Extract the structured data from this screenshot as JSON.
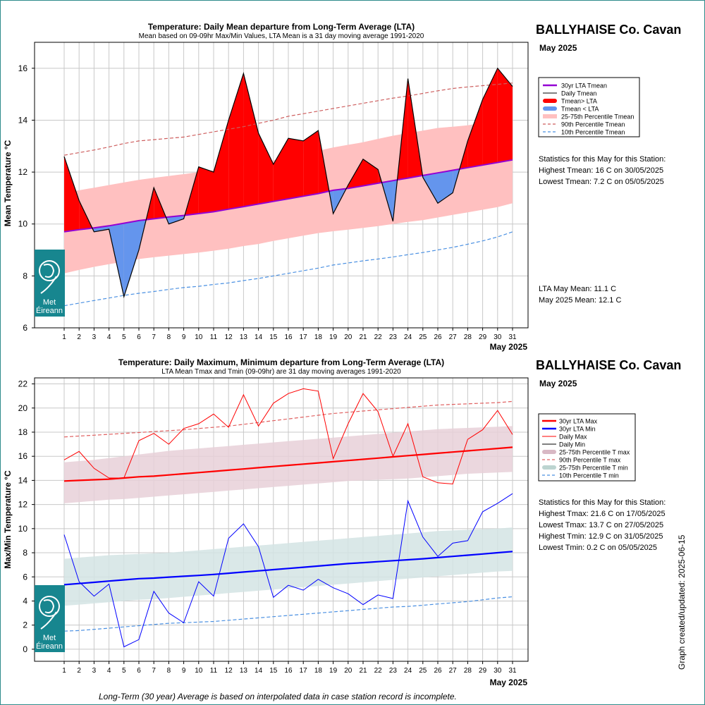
{
  "chart_data": [
    {
      "type": "area",
      "title": "Temperature: Daily Mean departure from Long-Term Average (LTA)",
      "subtitle": "Mean based on 09-09hr Max/Min Values, LTA Mean is a 31 day moving average 1991-2020",
      "ylabel": "Mean Temperature °C",
      "xlabel": "May 2025",
      "ylim": [
        6,
        17
      ],
      "yticks": [
        "6",
        "8",
        "10",
        "12",
        "14",
        "16"
      ],
      "x": [
        1,
        2,
        3,
        4,
        5,
        6,
        7,
        8,
        9,
        10,
        11,
        12,
        13,
        14,
        15,
        16,
        17,
        18,
        19,
        20,
        21,
        22,
        23,
        24,
        25,
        26,
        27,
        28,
        29,
        30,
        31
      ],
      "grid": true,
      "legend_position": "right",
      "legend": [
        "30yr LTA Tmean",
        "Daily Tmean",
        "Tmean> LTA",
        "Tmean < LTA",
        "25-75th Percentile Tmean",
        "90th Percentile Tmean",
        "10th Percentile Tmean"
      ],
      "series": [
        {
          "name": "Daily Tmean",
          "values": [
            12.6,
            10.9,
            9.7,
            9.8,
            7.2,
            9.0,
            11.4,
            10.0,
            10.2,
            12.2,
            12.0,
            14.0,
            15.8,
            13.5,
            12.3,
            13.3,
            13.2,
            13.6,
            10.4,
            11.5,
            12.5,
            12.1,
            10.1,
            15.6,
            11.8,
            10.8,
            11.2,
            13.2,
            14.8,
            16.0,
            15.3
          ]
        },
        {
          "name": "30yr LTA Tmean",
          "values": [
            9.7,
            9.78,
            9.85,
            9.93,
            10.03,
            10.13,
            10.2,
            10.27,
            10.33,
            10.4,
            10.47,
            10.57,
            10.67,
            10.77,
            10.87,
            10.97,
            11.07,
            11.17,
            11.3,
            11.37,
            11.47,
            11.57,
            11.67,
            11.77,
            11.87,
            11.97,
            12.07,
            12.17,
            12.27,
            12.37,
            12.47
          ]
        },
        {
          "name": "25th Percentile Tmean",
          "values": [
            8.1,
            8.23,
            8.35,
            8.45,
            8.55,
            8.65,
            8.72,
            8.78,
            8.84,
            8.9,
            8.97,
            9.05,
            9.15,
            9.23,
            9.35,
            9.45,
            9.55,
            9.65,
            9.72,
            9.78,
            9.85,
            9.92,
            10.0,
            10.08,
            10.15,
            10.25,
            10.35,
            10.45,
            10.55,
            10.65,
            10.8
          ]
        },
        {
          "name": "75th Percentile Tmean",
          "values": [
            11.2,
            11.3,
            11.4,
            11.5,
            11.6,
            11.7,
            11.78,
            11.85,
            11.92,
            12.0,
            12.07,
            12.15,
            12.25,
            12.35,
            12.45,
            12.57,
            12.7,
            12.82,
            12.95,
            13.05,
            13.15,
            13.28,
            13.4,
            13.5,
            13.6,
            13.7,
            13.75,
            13.8,
            13.9,
            14.0,
            14.05
          ]
        },
        {
          "name": "90th Percentile Tmean",
          "values": [
            12.65,
            12.75,
            12.85,
            12.97,
            13.1,
            13.2,
            13.25,
            13.3,
            13.35,
            13.45,
            13.55,
            13.65,
            13.75,
            13.88,
            14.0,
            14.15,
            14.25,
            14.35,
            14.45,
            14.55,
            14.65,
            14.75,
            14.85,
            14.93,
            15.03,
            15.13,
            15.22,
            15.28,
            15.33,
            15.38,
            15.43
          ]
        },
        {
          "name": "10th Percentile Tmean",
          "values": [
            6.85,
            6.95,
            7.05,
            7.15,
            7.25,
            7.33,
            7.4,
            7.48,
            7.55,
            7.6,
            7.67,
            7.73,
            7.82,
            7.9,
            8.0,
            8.1,
            8.2,
            8.3,
            8.42,
            8.5,
            8.58,
            8.65,
            8.73,
            8.82,
            8.9,
            9.0,
            9.1,
            9.22,
            9.35,
            9.5,
            9.7
          ]
        }
      ],
      "colors": {
        "above": "#ff0000",
        "below": "#6495ed",
        "lta": "#9400d3",
        "band": "#ffc0c0",
        "p90": "#cd5c5c",
        "p10": "#4a90e2"
      }
    },
    {
      "type": "line",
      "title": "Temperature: Daily Maximum, Minimum departure from Long-Term Average (LTA)",
      "subtitle": "LTA Mean Tmax and Tmin (09-09hr) are 31 day moving averages 1991-2020",
      "ylabel": "Max/Min Temperature °C",
      "xlabel": "May 2025",
      "ylim": [
        -1,
        22.5
      ],
      "yticks": [
        "0",
        "2",
        "4",
        "6",
        "8",
        "10",
        "12",
        "14",
        "16",
        "18",
        "20",
        "22"
      ],
      "x": [
        1,
        2,
        3,
        4,
        5,
        6,
        7,
        8,
        9,
        10,
        11,
        12,
        13,
        14,
        15,
        16,
        17,
        18,
        19,
        20,
        21,
        22,
        23,
        24,
        25,
        26,
        27,
        28,
        29,
        30,
        31
      ],
      "grid": true,
      "legend_position": "right",
      "legend": [
        "30yr LTA Max",
        "30yr LTA Min",
        "Daily Max",
        "Daily Min",
        "25-75th Percentile T max",
        "90th Percentile T max",
        "25-75th Percentile T min",
        "10th Percentile T min"
      ],
      "series": [
        {
          "name": "Daily Max",
          "values": [
            15.7,
            16.4,
            15.0,
            14.2,
            14.2,
            17.3,
            17.9,
            17.0,
            18.3,
            18.7,
            19.5,
            18.4,
            21.1,
            18.5,
            20.4,
            21.2,
            21.6,
            21.4,
            15.8,
            18.7,
            21.2,
            19.7,
            16.0,
            18.7,
            14.3,
            13.8,
            13.7,
            17.4,
            18.2,
            19.8,
            17.8
          ]
        },
        {
          "name": "Daily Min",
          "values": [
            9.5,
            5.6,
            4.4,
            5.4,
            0.2,
            0.8,
            4.8,
            3.0,
            2.2,
            5.6,
            4.4,
            9.2,
            10.4,
            8.5,
            4.3,
            5.3,
            4.9,
            5.8,
            5.1,
            4.6,
            3.7,
            4.5,
            4.2,
            12.3,
            9.3,
            7.7,
            8.8,
            9.0,
            11.4,
            12.1,
            12.9
          ]
        },
        {
          "name": "30yr LTA Max",
          "values": [
            13.95,
            14.0,
            14.05,
            14.1,
            14.2,
            14.3,
            14.35,
            14.45,
            14.55,
            14.65,
            14.75,
            14.85,
            14.95,
            15.05,
            15.15,
            15.25,
            15.35,
            15.45,
            15.55,
            15.65,
            15.75,
            15.85,
            15.95,
            16.05,
            16.15,
            16.25,
            16.35,
            16.45,
            16.55,
            16.65,
            16.75
          ]
        },
        {
          "name": "30yr LTA Min",
          "values": [
            5.35,
            5.45,
            5.55,
            5.65,
            5.75,
            5.85,
            5.9,
            5.98,
            6.05,
            6.12,
            6.2,
            6.3,
            6.4,
            6.5,
            6.6,
            6.7,
            6.8,
            6.9,
            7.0,
            7.1,
            7.18,
            7.26,
            7.34,
            7.42,
            7.5,
            7.6,
            7.7,
            7.8,
            7.9,
            8.0,
            8.1
          ]
        },
        {
          "name": "25th Percentile T max",
          "values": [
            12.1,
            12.2,
            12.3,
            12.4,
            12.45,
            12.55,
            12.65,
            12.75,
            12.85,
            12.95,
            13.05,
            13.15,
            13.25,
            13.35,
            13.45,
            13.55,
            13.65,
            13.75,
            13.85,
            13.95,
            14.0,
            14.05,
            14.1,
            14.15,
            14.25,
            14.35,
            14.45,
            14.55,
            14.6,
            14.65,
            14.7
          ]
        },
        {
          "name": "75th Percentile T max",
          "values": [
            15.5,
            15.6,
            15.7,
            15.85,
            16.0,
            16.15,
            16.3,
            16.45,
            16.55,
            16.65,
            16.75,
            16.85,
            16.95,
            17.05,
            17.15,
            17.25,
            17.35,
            17.45,
            17.55,
            17.65,
            17.75,
            17.85,
            17.95,
            18.05,
            18.15,
            18.25,
            18.3,
            18.35,
            18.4,
            18.45,
            18.5
          ]
        },
        {
          "name": "90th Percentile T max",
          "values": [
            17.6,
            17.68,
            17.75,
            17.82,
            17.9,
            17.97,
            18.05,
            18.12,
            18.2,
            18.3,
            18.4,
            18.5,
            18.65,
            18.8,
            18.95,
            19.1,
            19.25,
            19.4,
            19.55,
            19.65,
            19.75,
            19.85,
            19.95,
            20.05,
            20.15,
            20.25,
            20.3,
            20.35,
            20.4,
            20.45,
            20.55
          ]
        },
        {
          "name": "25th Percentile T min",
          "values": [
            3.6,
            3.7,
            3.8,
            3.9,
            4.0,
            4.1,
            4.15,
            4.25,
            4.35,
            4.45,
            4.55,
            4.65,
            4.75,
            4.85,
            4.95,
            5.05,
            5.15,
            5.25,
            5.35,
            5.45,
            5.55,
            5.65,
            5.75,
            5.85,
            5.95,
            6.05,
            6.15,
            6.25,
            6.35,
            6.45,
            6.5
          ]
        },
        {
          "name": "75th Percentile T min",
          "values": [
            7.5,
            7.6,
            7.7,
            7.8,
            7.85,
            7.9,
            7.95,
            8.0,
            8.1,
            8.2,
            8.3,
            8.4,
            8.5,
            8.6,
            8.7,
            8.8,
            8.9,
            9.0,
            9.1,
            9.2,
            9.3,
            9.4,
            9.5,
            9.6,
            9.7,
            9.8,
            9.85,
            9.9,
            9.95,
            10.0,
            10.1
          ]
        },
        {
          "name": "10th Percentile T min",
          "values": [
            1.5,
            1.55,
            1.65,
            1.75,
            1.85,
            1.95,
            2.05,
            2.15,
            2.2,
            2.25,
            2.3,
            2.4,
            2.5,
            2.6,
            2.7,
            2.8,
            2.9,
            3.0,
            3.1,
            3.2,
            3.3,
            3.4,
            3.5,
            3.55,
            3.65,
            3.75,
            3.85,
            3.95,
            4.1,
            4.25,
            4.35
          ]
        }
      ],
      "colors": {
        "ltamax": "#ff0000",
        "ltamin": "#0000ff",
        "dmax": "#ff0000",
        "dmin": "#0000ff",
        "bandmax": "#e8d0d8",
        "bandmin": "#d4e4e4",
        "p90": "#e06060",
        "p10": "#4a90e2"
      }
    }
  ],
  "top_panel": {
    "station": "BALLYHAISE Co. Cavan",
    "month": "May 2025",
    "stats_heading": "Statistics for this May for this Station:",
    "stats": [
      "Highest Tmean: 16 C on 30/05/2025",
      "Lowest Tmean: 7.2 C on 05/05/2025"
    ],
    "lta_mean": "LTA May Mean: 11.1 C",
    "month_mean": "May 2025 Mean: 12.1 C"
  },
  "bottom_panel": {
    "station": "BALLYHAISE Co. Cavan",
    "month": "May 2025",
    "stats_heading": "Statistics for this May for this Station:",
    "stats": [
      "Highest Tmax: 21.6 C on 17/05/2025",
      "Lowest Tmax: 13.7 C on 27/05/2025",
      "Highest Tmin: 12.9 C on 31/05/2025",
      "Lowest Tmin: 0.2 C on 05/05/2025"
    ]
  },
  "logo": {
    "line1": "Met",
    "line2": "Éireann"
  },
  "footnote": "Long-Term (30 year) Average is based on interpolated data in case station record is incomplete.",
  "updated": "Graph created/updated:  2025-06-15"
}
